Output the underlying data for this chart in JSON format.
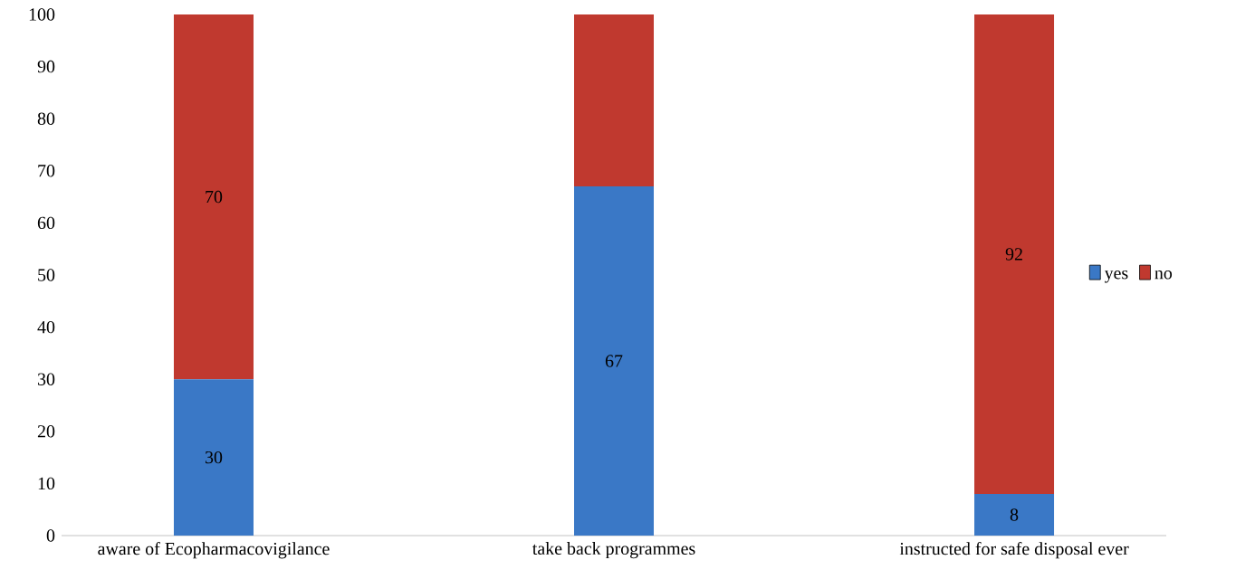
{
  "chart_data": {
    "type": "bar",
    "stacked": true,
    "categories": [
      "aware of Ecopharmacovigilance",
      "take back programmes",
      "instructed for safe disposal ever"
    ],
    "series": [
      {
        "name": "yes",
        "color": "#3a78c6",
        "values": [
          30,
          67,
          8
        ],
        "value_labels": [
          "30",
          "67",
          "8"
        ]
      },
      {
        "name": "no",
        "color": "#c0392f",
        "values": [
          70,
          33,
          92
        ],
        "value_labels": [
          "70",
          null,
          "92"
        ]
      }
    ],
    "ylim": [
      0,
      100
    ],
    "yticks": [
      0,
      10,
      20,
      30,
      40,
      50,
      60,
      70,
      80,
      90,
      100
    ],
    "legend": "right",
    "grid": false
  }
}
